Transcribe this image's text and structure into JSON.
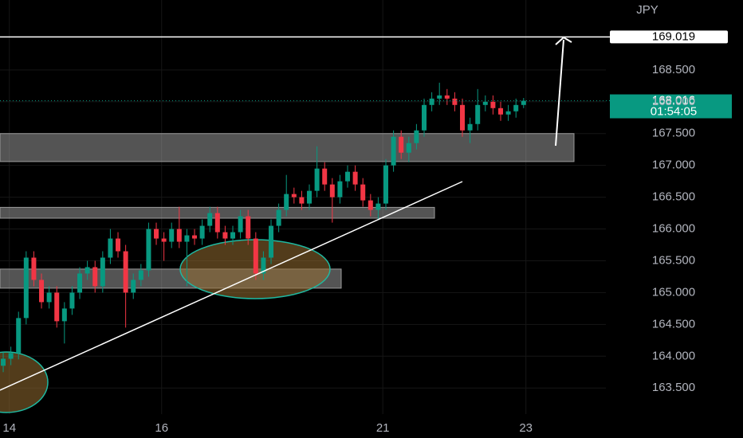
{
  "chart_data": {
    "type": "candlestick",
    "currency": "JPY",
    "open": [
      163.85,
      163.96,
      164.05,
      164.6,
      165.55,
      165.2,
      164.85,
      165.0,
      164.55,
      164.75,
      165.0,
      165.3,
      165.4,
      165.1,
      165.55,
      165.85,
      165.65,
      165.0,
      165.2,
      165.35,
      166.0,
      165.85,
      165.8,
      166.0,
      165.8,
      165.9,
      165.85,
      166.05,
      166.25,
      165.95,
      165.85,
      165.95,
      166.2,
      165.85,
      165.3,
      165.55,
      166.05,
      166.3,
      166.55,
      166.5,
      166.4,
      166.6,
      166.95,
      166.7,
      166.5,
      166.75,
      166.9,
      166.7,
      166.45,
      166.3,
      166.4,
      167.0,
      167.45,
      167.2,
      167.35,
      167.55,
      167.95,
      168.05,
      168.1,
      168.05,
      167.95,
      167.55,
      167.65,
      167.95,
      168.0,
      167.9,
      167.8,
      167.85,
      167.95
    ],
    "high": [
      164.06,
      164.15,
      164.7,
      165.65,
      165.65,
      165.3,
      165.1,
      165.1,
      164.85,
      165.1,
      165.4,
      165.5,
      165.5,
      165.65,
      166.0,
      165.95,
      165.75,
      165.3,
      165.45,
      166.1,
      166.1,
      165.95,
      166.1,
      166.35,
      166.0,
      166.0,
      166.15,
      166.35,
      166.35,
      166.05,
      166.05,
      166.3,
      166.3,
      165.95,
      165.65,
      166.15,
      166.4,
      166.85,
      166.65,
      166.6,
      166.7,
      167.3,
      167.05,
      166.8,
      166.85,
      167.0,
      167.0,
      166.8,
      166.55,
      166.5,
      167.1,
      167.55,
      167.55,
      167.45,
      167.65,
      168.05,
      168.15,
      168.3,
      168.2,
      168.15,
      168.05,
      167.75,
      168.2,
      168.1,
      168.1,
      168.0,
      167.95,
      168.05,
      168.06
    ],
    "low": [
      163.75,
      163.86,
      163.95,
      164.5,
      165.1,
      164.75,
      164.75,
      164.45,
      164.2,
      164.65,
      164.9,
      165.2,
      165.0,
      165.0,
      165.45,
      165.55,
      164.45,
      164.9,
      165.1,
      165.25,
      165.75,
      165.5,
      165.7,
      165.7,
      165.1,
      165.75,
      165.75,
      165.95,
      165.85,
      165.75,
      165.75,
      165.85,
      165.75,
      165.2,
      165.2,
      165.45,
      165.95,
      166.2,
      166.4,
      166.3,
      166.3,
      166.5,
      166.6,
      166.1,
      166.4,
      166.65,
      166.6,
      166.35,
      166.2,
      166.15,
      166.3,
      166.9,
      167.1,
      167.05,
      167.25,
      167.45,
      167.85,
      167.95,
      167.95,
      167.85,
      167.45,
      167.35,
      167.55,
      167.85,
      167.8,
      167.7,
      167.7,
      167.75,
      167.9
    ],
    "close": [
      163.96,
      164.05,
      164.6,
      165.55,
      165.2,
      164.85,
      165.0,
      164.55,
      164.75,
      165.0,
      165.3,
      165.4,
      165.1,
      165.55,
      165.85,
      165.65,
      165.0,
      165.2,
      165.35,
      166.0,
      165.85,
      165.8,
      166.0,
      165.8,
      165.9,
      165.85,
      166.05,
      166.25,
      165.95,
      165.85,
      165.95,
      166.2,
      165.85,
      165.3,
      165.55,
      166.05,
      166.3,
      166.55,
      166.5,
      166.4,
      166.6,
      166.95,
      166.7,
      166.5,
      166.75,
      166.9,
      166.7,
      166.45,
      166.3,
      166.4,
      167.0,
      167.45,
      167.2,
      167.35,
      167.55,
      167.95,
      168.05,
      168.1,
      168.05,
      167.95,
      167.55,
      167.65,
      167.95,
      168.0,
      167.9,
      167.8,
      167.85,
      167.95,
      168.016
    ],
    "up_color": "#089981",
    "down_color": "#f23645",
    "xlim": [
      -0.42,
      78.75
    ],
    "xticks": [
      {
        "value": 0.8,
        "label": "14"
      },
      {
        "value": 20.7,
        "label": "16"
      },
      {
        "value": 49.6,
        "label": "21"
      },
      {
        "value": 68.3,
        "label": "23"
      }
    ],
    "ylim": [
      163.09,
      169.6
    ],
    "yticks": [
      {
        "value": 163.5,
        "label": "163.500"
      },
      {
        "value": 164,
        "label": "164.000"
      },
      {
        "value": 164.5,
        "label": "164.500"
      },
      {
        "value": 165,
        "label": "165.000"
      },
      {
        "value": 165.5,
        "label": "165.500"
      },
      {
        "value": 166,
        "label": "166.000"
      },
      {
        "value": 166.5,
        "label": "166.500"
      },
      {
        "value": 167,
        "label": "167.000"
      },
      {
        "value": 167.5,
        "label": "167.500"
      },
      {
        "value": 168,
        "label": "168.000"
      },
      {
        "value": 168.5,
        "label": "168.500"
      }
    ],
    "grid": true,
    "target": 169.019,
    "last_price": 168.016,
    "countdown": "01:54:05",
    "zones": [
      {
        "low": 167.06,
        "high": 167.5
      },
      {
        "low": 166.17,
        "high": 166.34
      },
      {
        "low": 165.07,
        "high": 165.37
      }
    ]
  }
}
